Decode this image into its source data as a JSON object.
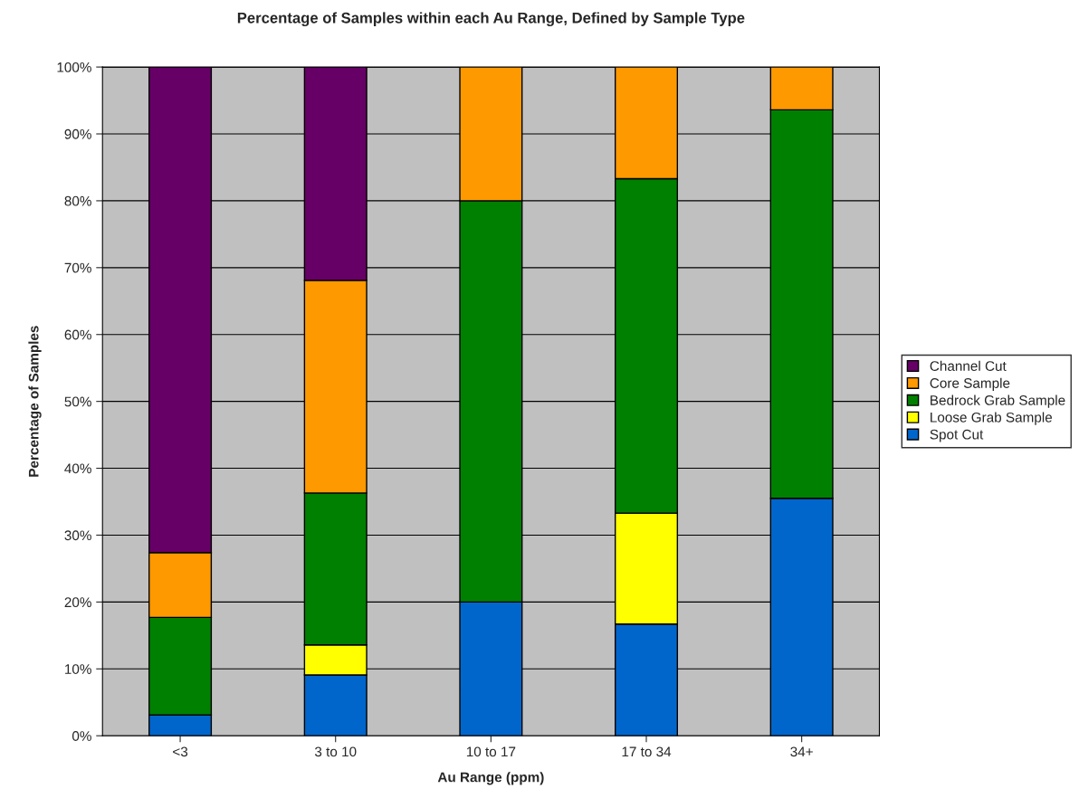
{
  "chart_data": {
    "type": "bar",
    "stacked": true,
    "title": "Percentage of Samples within each Au Range, Defined by Sample Type",
    "xlabel": "Au Range (ppm)",
    "ylabel": "Percentage of Samples",
    "categories": [
      "<3",
      "3 to 10",
      "10 to 17",
      "17 to 34",
      "34+"
    ],
    "series": [
      {
        "name": "Spot Cut",
        "color": "#0066cc",
        "values": [
          3.1,
          9.1,
          20,
          16.7,
          35.5
        ]
      },
      {
        "name": "Loose Grab Sample",
        "color": "#ffff00",
        "values": [
          null,
          4.5,
          null,
          16.6,
          null
        ]
      },
      {
        "name": "Bedrock Grab Sample",
        "color": "#008000",
        "values": [
          14.6,
          22.7,
          60,
          50,
          58.1
        ]
      },
      {
        "name": "Core Sample",
        "color": "#ff9900",
        "values": [
          9.7,
          31.8,
          20,
          16.7,
          6.4
        ]
      },
      {
        "name": "Channel Cut",
        "color": "#660066",
        "values": [
          72.6,
          31.9,
          null,
          null,
          null
        ]
      }
    ],
    "ylim": [
      0,
      100
    ],
    "yticks": [
      {
        "value": 0,
        "label": "0%"
      },
      {
        "value": 10,
        "label": "10%"
      },
      {
        "value": 20,
        "label": "20%"
      },
      {
        "value": 30,
        "label": "30%"
      },
      {
        "value": 40,
        "label": "40%"
      },
      {
        "value": 50,
        "label": "50%"
      },
      {
        "value": 60,
        "label": "60%"
      },
      {
        "value": 70,
        "label": "70%"
      },
      {
        "value": 80,
        "label": "80%"
      },
      {
        "value": 90,
        "label": "90%"
      },
      {
        "value": 100,
        "label": "100%"
      }
    ],
    "grid": "y",
    "legend": "right"
  }
}
